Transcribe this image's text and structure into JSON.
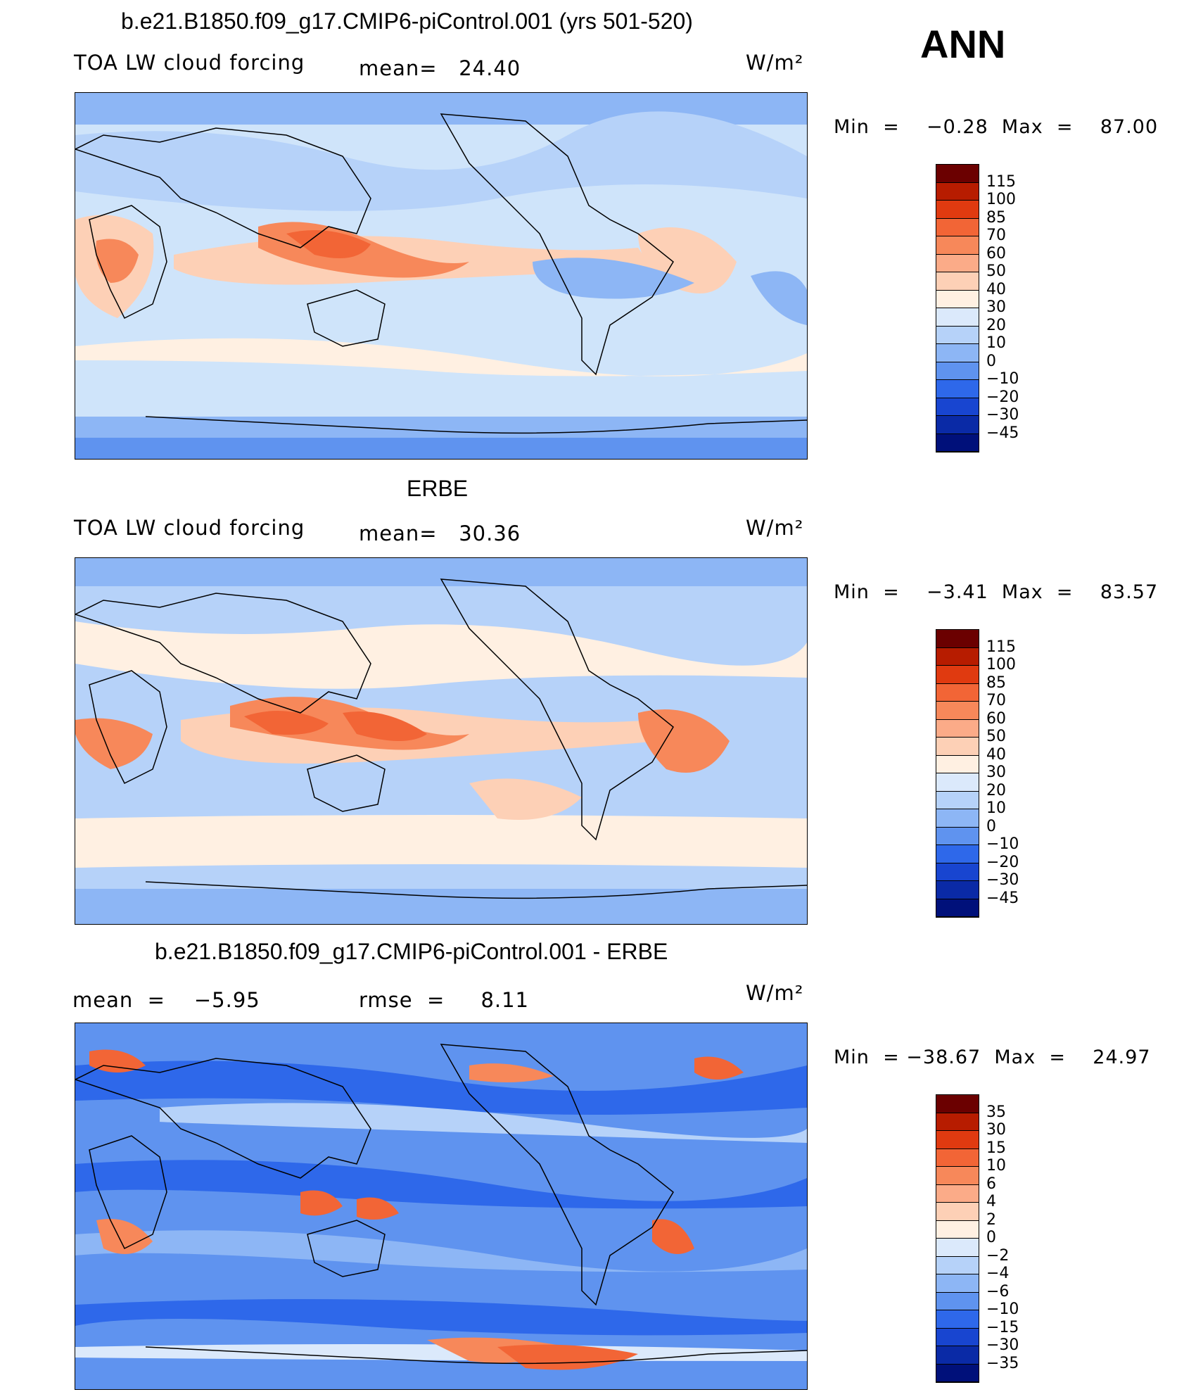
{
  "season": "ANN",
  "panels": [
    {
      "title": "b.e21.B1850.f09_g17.CMIP6-piControl.001 (yrs 501-520)",
      "left_text": "TOA LW cloud forcing",
      "mid_text": "mean=   24.40",
      "units": "W/m²",
      "minmax": "Min  =    −0.28  Max  =    87.00",
      "colorbar_labels": [
        "115",
        "100",
        "85",
        "70",
        "60",
        "50",
        "40",
        "30",
        "20",
        "10",
        "0",
        "−10",
        "−20",
        "−30",
        "−45"
      ]
    },
    {
      "title": "ERBE",
      "left_text": "TOA LW cloud forcing",
      "mid_text": "mean=   30.36",
      "units": "W/m²",
      "minmax": "Min  =    −3.41  Max  =    83.57",
      "colorbar_labels": [
        "115",
        "100",
        "85",
        "70",
        "60",
        "50",
        "40",
        "30",
        "20",
        "10",
        "0",
        "−10",
        "−20",
        "−30",
        "−45"
      ]
    },
    {
      "title": "b.e21.B1850.f09_g17.CMIP6-piControl.001 - ERBE",
      "left_text": "mean  =    −5.95",
      "mid_text": "rmse  =     8.11",
      "units": "W/m²",
      "minmax": "Min  = −38.67  Max  =    24.97",
      "colorbar_labels": [
        "35",
        "30",
        "15",
        "10",
        "6",
        "4",
        "2",
        "0",
        "−2",
        "−4",
        "−6",
        "−10",
        "−15",
        "−30",
        "−35"
      ]
    }
  ],
  "colors": {
    "cbar": [
      "#6b0000",
      "#b71c00",
      "#e03a10",
      "#f26536",
      "#f7885a",
      "#fbab88",
      "#fdd0b6",
      "#fff0e2",
      "#dbe9fb",
      "#b6d2f9",
      "#8db6f5",
      "#5f93ef",
      "#2e68ea",
      "#1845d0",
      "#0a2aa6",
      "#00107a"
    ]
  }
}
